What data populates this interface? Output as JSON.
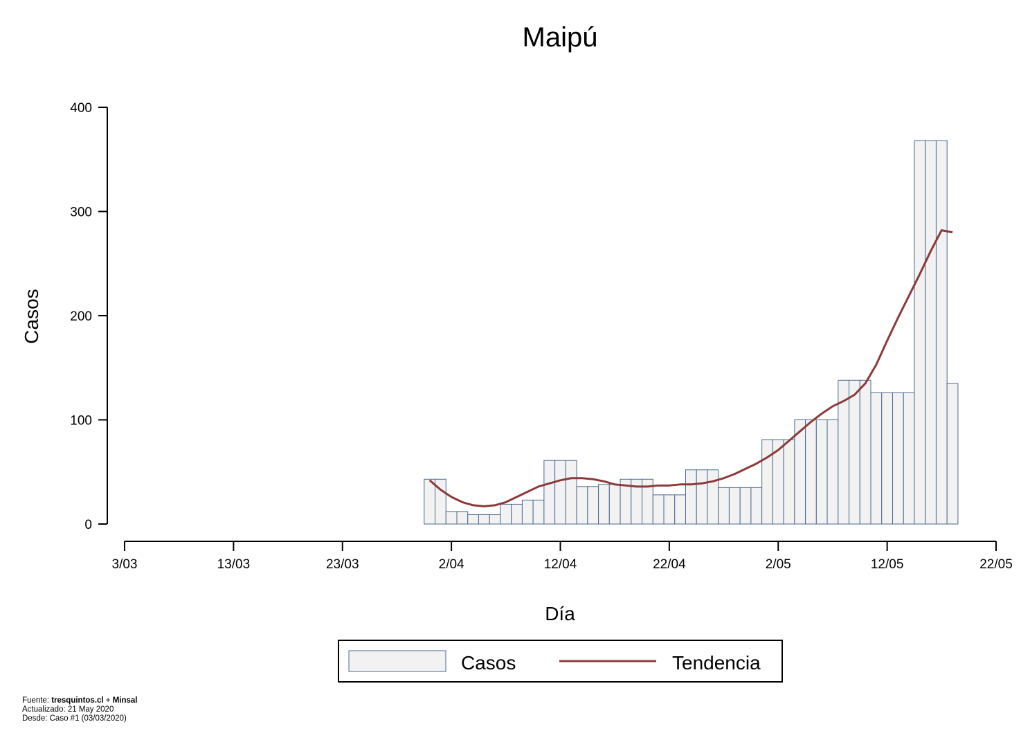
{
  "chart_data": {
    "type": "bar",
    "title": "Maipú",
    "xlabel": "Día",
    "ylabel": "Casos",
    "ylim": [
      0,
      400
    ],
    "xlim": [
      "2020-03-03",
      "2020-05-22"
    ],
    "yticks": [
      0,
      100,
      200,
      300,
      400
    ],
    "xticks": [
      {
        "date": "2020-03-03",
        "label": "3/03"
      },
      {
        "date": "2020-03-13",
        "label": "13/03"
      },
      {
        "date": "2020-03-23",
        "label": "23/03"
      },
      {
        "date": "2020-04-02",
        "label": "2/04"
      },
      {
        "date": "2020-04-12",
        "label": "12/04"
      },
      {
        "date": "2020-04-22",
        "label": "22/04"
      },
      {
        "date": "2020-05-02",
        "label": "2/05"
      },
      {
        "date": "2020-05-12",
        "label": "12/05"
      },
      {
        "date": "2020-05-22",
        "label": "22/05"
      }
    ],
    "grid": false,
    "legend_position": "bottom",
    "series": [
      {
        "name": "Casos",
        "kind": "bar",
        "color": "#f2f2f2",
        "edge_color": "#4a6890",
        "points": [
          {
            "x": "2020-03-31",
            "y": 43
          },
          {
            "x": "2020-04-01",
            "y": 43
          },
          {
            "x": "2020-04-02",
            "y": 12
          },
          {
            "x": "2020-04-03",
            "y": 12
          },
          {
            "x": "2020-04-04",
            "y": 9
          },
          {
            "x": "2020-04-05",
            "y": 9
          },
          {
            "x": "2020-04-06",
            "y": 9
          },
          {
            "x": "2020-04-07",
            "y": 19
          },
          {
            "x": "2020-04-08",
            "y": 19
          },
          {
            "x": "2020-04-09",
            "y": 23
          },
          {
            "x": "2020-04-10",
            "y": 23
          },
          {
            "x": "2020-04-11",
            "y": 61
          },
          {
            "x": "2020-04-12",
            "y": 61
          },
          {
            "x": "2020-04-13",
            "y": 61
          },
          {
            "x": "2020-04-14",
            "y": 36
          },
          {
            "x": "2020-04-15",
            "y": 36
          },
          {
            "x": "2020-04-16",
            "y": 38
          },
          {
            "x": "2020-04-17",
            "y": 38
          },
          {
            "x": "2020-04-18",
            "y": 43
          },
          {
            "x": "2020-04-19",
            "y": 43
          },
          {
            "x": "2020-04-20",
            "y": 43
          },
          {
            "x": "2020-04-21",
            "y": 28
          },
          {
            "x": "2020-04-22",
            "y": 28
          },
          {
            "x": "2020-04-23",
            "y": 28
          },
          {
            "x": "2020-04-24",
            "y": 52
          },
          {
            "x": "2020-04-25",
            "y": 52
          },
          {
            "x": "2020-04-26",
            "y": 52
          },
          {
            "x": "2020-04-27",
            "y": 35
          },
          {
            "x": "2020-04-28",
            "y": 35
          },
          {
            "x": "2020-04-29",
            "y": 35
          },
          {
            "x": "2020-04-30",
            "y": 35
          },
          {
            "x": "2020-05-01",
            "y": 81
          },
          {
            "x": "2020-05-02",
            "y": 81
          },
          {
            "x": "2020-05-03",
            "y": 81
          },
          {
            "x": "2020-05-04",
            "y": 100
          },
          {
            "x": "2020-05-05",
            "y": 100
          },
          {
            "x": "2020-05-06",
            "y": 100
          },
          {
            "x": "2020-05-07",
            "y": 100
          },
          {
            "x": "2020-05-08",
            "y": 138
          },
          {
            "x": "2020-05-09",
            "y": 138
          },
          {
            "x": "2020-05-10",
            "y": 138
          },
          {
            "x": "2020-05-11",
            "y": 126
          },
          {
            "x": "2020-05-12",
            "y": 126
          },
          {
            "x": "2020-05-13",
            "y": 126
          },
          {
            "x": "2020-05-14",
            "y": 126
          },
          {
            "x": "2020-05-15",
            "y": 368
          },
          {
            "x": "2020-05-16",
            "y": 368
          },
          {
            "x": "2020-05-17",
            "y": 368
          },
          {
            "x": "2020-05-18",
            "y": 135
          }
        ]
      },
      {
        "name": "Tendencia",
        "kind": "line",
        "color": "#8b3a3a",
        "points": [
          {
            "x": "2020-03-31",
            "y": 42
          },
          {
            "x": "2020-04-01",
            "y": 33
          },
          {
            "x": "2020-04-02",
            "y": 26
          },
          {
            "x": "2020-04-03",
            "y": 21
          },
          {
            "x": "2020-04-04",
            "y": 18
          },
          {
            "x": "2020-04-05",
            "y": 17
          },
          {
            "x": "2020-04-06",
            "y": 18
          },
          {
            "x": "2020-04-07",
            "y": 21
          },
          {
            "x": "2020-04-08",
            "y": 26
          },
          {
            "x": "2020-04-09",
            "y": 31
          },
          {
            "x": "2020-04-10",
            "y": 36
          },
          {
            "x": "2020-04-11",
            "y": 39
          },
          {
            "x": "2020-04-12",
            "y": 42
          },
          {
            "x": "2020-04-13",
            "y": 44
          },
          {
            "x": "2020-04-14",
            "y": 44
          },
          {
            "x": "2020-04-15",
            "y": 43
          },
          {
            "x": "2020-04-16",
            "y": 41
          },
          {
            "x": "2020-04-17",
            "y": 38
          },
          {
            "x": "2020-04-18",
            "y": 37
          },
          {
            "x": "2020-04-19",
            "y": 36
          },
          {
            "x": "2020-04-20",
            "y": 36
          },
          {
            "x": "2020-04-21",
            "y": 37
          },
          {
            "x": "2020-04-22",
            "y": 37
          },
          {
            "x": "2020-04-23",
            "y": 38
          },
          {
            "x": "2020-04-24",
            "y": 38
          },
          {
            "x": "2020-04-25",
            "y": 39
          },
          {
            "x": "2020-04-26",
            "y": 41
          },
          {
            "x": "2020-04-27",
            "y": 44
          },
          {
            "x": "2020-04-28",
            "y": 48
          },
          {
            "x": "2020-04-29",
            "y": 53
          },
          {
            "x": "2020-04-30",
            "y": 58
          },
          {
            "x": "2020-05-01",
            "y": 64
          },
          {
            "x": "2020-05-02",
            "y": 71
          },
          {
            "x": "2020-05-03",
            "y": 80
          },
          {
            "x": "2020-05-04",
            "y": 89
          },
          {
            "x": "2020-05-05",
            "y": 98
          },
          {
            "x": "2020-05-06",
            "y": 106
          },
          {
            "x": "2020-05-07",
            "y": 113
          },
          {
            "x": "2020-05-08",
            "y": 118
          },
          {
            "x": "2020-05-09",
            "y": 124
          },
          {
            "x": "2020-05-10",
            "y": 135
          },
          {
            "x": "2020-05-11",
            "y": 153
          },
          {
            "x": "2020-05-12",
            "y": 176
          },
          {
            "x": "2020-05-13",
            "y": 198
          },
          {
            "x": "2020-05-14",
            "y": 219
          },
          {
            "x": "2020-05-15",
            "y": 240
          },
          {
            "x": "2020-05-16",
            "y": 262
          },
          {
            "x": "2020-05-17",
            "y": 282
          },
          {
            "x": "2020-05-18",
            "y": 280
          }
        ]
      }
    ]
  },
  "footer": {
    "source_prefix": "Fuente: ",
    "source_site": "tresquintos.cl",
    "source_joiner": " + ",
    "source_org": "Minsal",
    "updated": "Actualizado: 21 May 2020",
    "since": "Desde: Caso #1  (03/03/2020)"
  }
}
